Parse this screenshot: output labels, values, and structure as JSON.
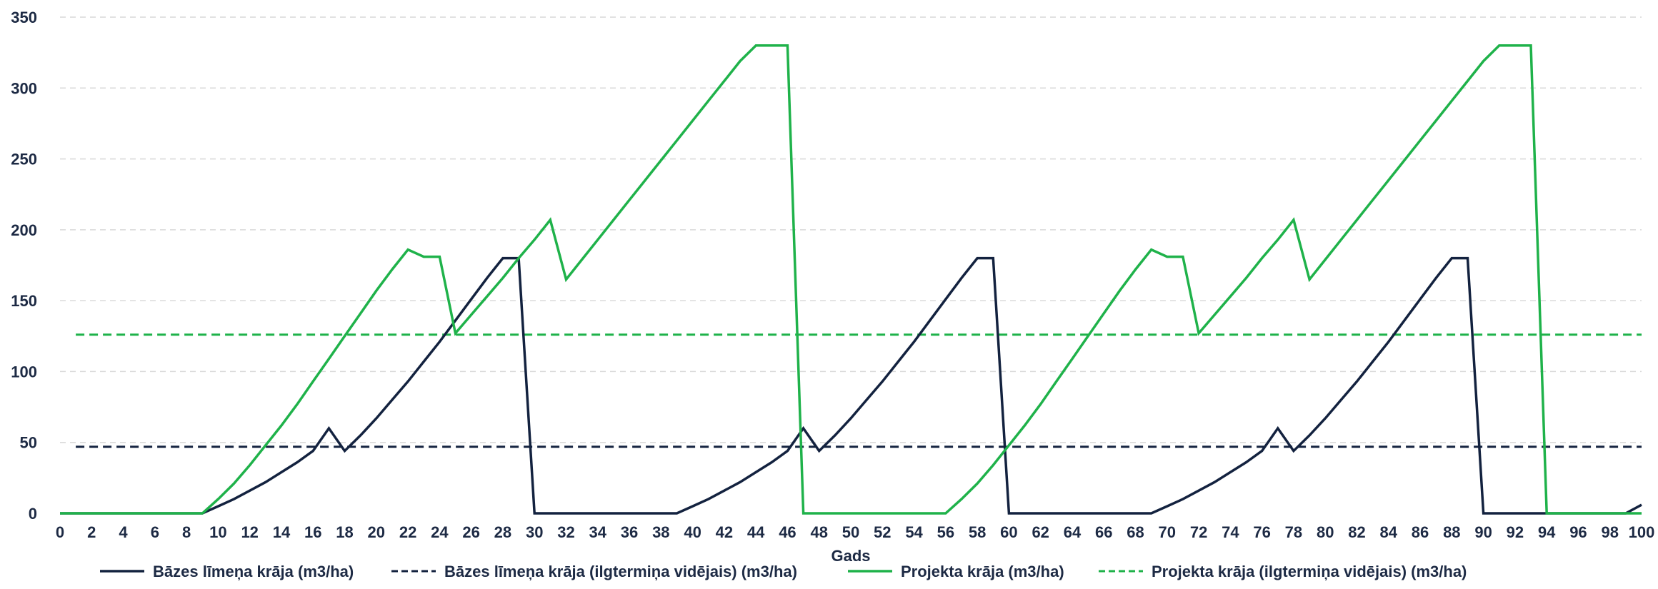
{
  "chart_data": {
    "type": "line",
    "xlabel": "Gads",
    "ylabel": "",
    "xlim": [
      0,
      100
    ],
    "ylim": [
      0,
      350
    ],
    "x_ticks": [
      "0",
      "2",
      "4",
      "6",
      "8",
      "10",
      "12",
      "14",
      "16",
      "18",
      "20",
      "22",
      "24",
      "26",
      "28",
      "30",
      "32",
      "34",
      "36",
      "38",
      "40",
      "42",
      "44",
      "46",
      "48",
      "50",
      "52",
      "54",
      "56",
      "58",
      "60",
      "62",
      "64",
      "66",
      "68",
      "70",
      "72",
      "74",
      "76",
      "78",
      "80",
      "82",
      "84",
      "86",
      "88",
      "90",
      "92",
      "94",
      "96",
      "98",
      "100"
    ],
    "y_ticks": [
      "0",
      "50",
      "100",
      "150",
      "200",
      "250",
      "300",
      "350"
    ],
    "grid": "horizontal dashed",
    "legend_position": "bottom",
    "series": [
      {
        "name": "Bāzes līmeņa krāja (m3/ha)",
        "color": "#13223f",
        "style": "solid",
        "points": [
          [
            0,
            0
          ],
          [
            9,
            0
          ],
          [
            10,
            5
          ],
          [
            11,
            10
          ],
          [
            12,
            16
          ],
          [
            13,
            22
          ],
          [
            14,
            29
          ],
          [
            15,
            36
          ],
          [
            16,
            44
          ],
          [
            17,
            60
          ],
          [
            18,
            44
          ],
          [
            19,
            55
          ],
          [
            20,
            67
          ],
          [
            21,
            80
          ],
          [
            22,
            93
          ],
          [
            23,
            107
          ],
          [
            24,
            121
          ],
          [
            25,
            136
          ],
          [
            26,
            151
          ],
          [
            27,
            166
          ],
          [
            28,
            180
          ],
          [
            29,
            180
          ],
          [
            30,
            0
          ],
          [
            39,
            0
          ],
          [
            40,
            5
          ],
          [
            41,
            10
          ],
          [
            42,
            16
          ],
          [
            43,
            22
          ],
          [
            44,
            29
          ],
          [
            45,
            36
          ],
          [
            46,
            44
          ],
          [
            47,
            60
          ],
          [
            48,
            44
          ],
          [
            49,
            55
          ],
          [
            50,
            67
          ],
          [
            51,
            80
          ],
          [
            52,
            93
          ],
          [
            53,
            107
          ],
          [
            54,
            121
          ],
          [
            55,
            136
          ],
          [
            56,
            151
          ],
          [
            57,
            166
          ],
          [
            58,
            180
          ],
          [
            59,
            180
          ],
          [
            60,
            0
          ],
          [
            69,
            0
          ],
          [
            70,
            5
          ],
          [
            71,
            10
          ],
          [
            72,
            16
          ],
          [
            73,
            22
          ],
          [
            74,
            29
          ],
          [
            75,
            36
          ],
          [
            76,
            44
          ],
          [
            77,
            60
          ],
          [
            78,
            44
          ],
          [
            79,
            55
          ],
          [
            80,
            67
          ],
          [
            81,
            80
          ],
          [
            82,
            93
          ],
          [
            83,
            107
          ],
          [
            84,
            121
          ],
          [
            85,
            136
          ],
          [
            86,
            151
          ],
          [
            87,
            166
          ],
          [
            88,
            180
          ],
          [
            89,
            180
          ],
          [
            90,
            0
          ],
          [
            99,
            0
          ],
          [
            100,
            6
          ]
        ]
      },
      {
        "name": "Bāzes līmeņa krāja (ilgtermiņa vidējais) (m3/ha)",
        "color": "#13223f",
        "style": "dashed",
        "points": [
          [
            1,
            47
          ],
          [
            100,
            47
          ]
        ]
      },
      {
        "name": "Projekta krāja (m3/ha)",
        "color": "#1fb24a",
        "style": "solid",
        "points": [
          [
            0,
            0
          ],
          [
            9,
            0
          ],
          [
            10,
            10
          ],
          [
            11,
            21
          ],
          [
            12,
            34
          ],
          [
            13,
            48
          ],
          [
            14,
            62
          ],
          [
            15,
            77
          ],
          [
            16,
            93
          ],
          [
            17,
            109
          ],
          [
            18,
            125
          ],
          [
            19,
            141
          ],
          [
            20,
            157
          ],
          [
            21,
            172
          ],
          [
            22,
            186
          ],
          [
            23,
            181
          ],
          [
            24,
            181
          ],
          [
            25,
            127
          ],
          [
            26,
            140
          ],
          [
            27,
            153
          ],
          [
            28,
            166
          ],
          [
            29,
            180
          ],
          [
            30,
            193
          ],
          [
            31,
            207
          ],
          [
            32,
            165
          ],
          [
            33,
            179
          ],
          [
            34,
            193
          ],
          [
            35,
            207
          ],
          [
            36,
            221
          ],
          [
            37,
            235
          ],
          [
            38,
            249
          ],
          [
            39,
            263
          ],
          [
            40,
            277
          ],
          [
            41,
            291
          ],
          [
            42,
            305
          ],
          [
            43,
            319
          ],
          [
            44,
            330
          ],
          [
            45,
            330
          ],
          [
            46,
            330
          ],
          [
            47,
            0
          ],
          [
            56,
            0
          ],
          [
            57,
            10
          ],
          [
            58,
            21
          ],
          [
            59,
            34
          ],
          [
            60,
            48
          ],
          [
            61,
            62
          ],
          [
            62,
            77
          ],
          [
            63,
            93
          ],
          [
            64,
            109
          ],
          [
            65,
            125
          ],
          [
            66,
            141
          ],
          [
            67,
            157
          ],
          [
            68,
            172
          ],
          [
            69,
            186
          ],
          [
            70,
            181
          ],
          [
            71,
            181
          ],
          [
            72,
            127
          ],
          [
            73,
            140
          ],
          [
            74,
            153
          ],
          [
            75,
            166
          ],
          [
            76,
            180
          ],
          [
            77,
            193
          ],
          [
            78,
            207
          ],
          [
            79,
            165
          ],
          [
            80,
            179
          ],
          [
            81,
            193
          ],
          [
            82,
            207
          ],
          [
            83,
            221
          ],
          [
            84,
            235
          ],
          [
            85,
            249
          ],
          [
            86,
            263
          ],
          [
            87,
            277
          ],
          [
            88,
            291
          ],
          [
            89,
            305
          ],
          [
            90,
            319
          ],
          [
            91,
            330
          ],
          [
            92,
            330
          ],
          [
            93,
            330
          ],
          [
            94,
            0
          ],
          [
            100,
            0
          ]
        ]
      },
      {
        "name": "Projekta krāja (ilgtermiņa vidējais) (m3/ha)",
        "color": "#1fb24a",
        "style": "dashed",
        "points": [
          [
            1,
            126
          ],
          [
            100,
            126
          ]
        ]
      }
    ]
  }
}
